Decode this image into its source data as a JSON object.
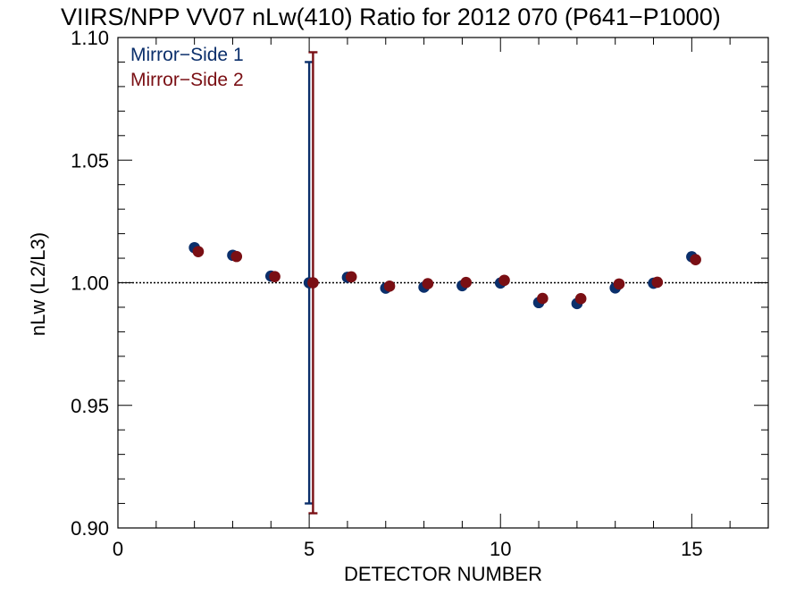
{
  "chart_data": {
    "type": "scatter",
    "title": "VIIRS/NPP VV07 nLw(410) Ratio for 2012 070 (P641−P1000)",
    "xlabel": "DETECTOR NUMBER",
    "ylabel": "nLw (L2/L3)",
    "xlim": [
      0,
      17
    ],
    "ylim": [
      0.9,
      1.1
    ],
    "x_ticks": [
      0,
      5,
      10,
      15
    ],
    "x_tick_labels": [
      "0",
      "5",
      "10",
      "15"
    ],
    "y_ticks": [
      0.9,
      0.95,
      1.0,
      1.05,
      1.1
    ],
    "y_tick_labels": [
      "0.90",
      "0.95",
      "1.00",
      "1.05",
      "1.10"
    ],
    "reference_line": 1.0,
    "legend_position": "top-left",
    "series": [
      {
        "name": "Mirror−Side 1",
        "color": "#0b2f6b",
        "x": [
          2,
          3,
          4,
          5,
          6,
          7,
          8,
          9,
          10,
          11,
          12,
          13,
          14,
          15
        ],
        "y": [
          1.0143,
          1.0112,
          1.0027,
          1.0,
          1.0022,
          0.9978,
          0.9982,
          0.9988,
          0.9999,
          0.9919,
          0.9915,
          0.9979,
          0.9998,
          1.0106
        ],
        "error_bar": {
          "x": 5,
          "low": 0.91,
          "high": 1.09
        }
      },
      {
        "name": "Mirror−Side 2",
        "color": "#7a0f14",
        "x": [
          2.1,
          3.1,
          4.1,
          5.1,
          6.1,
          7.1,
          8.1,
          9.1,
          10.1,
          11.1,
          12.1,
          13.1,
          14.1,
          15.1
        ],
        "y": [
          1.0127,
          1.0107,
          1.0025,
          1.0,
          1.0024,
          0.9986,
          0.9996,
          1.0001,
          1.001,
          0.9936,
          0.9935,
          0.9995,
          1.0002,
          1.0094
        ],
        "error_bar": {
          "x": 5.1,
          "low": 0.906,
          "high": 1.094
        }
      }
    ]
  }
}
